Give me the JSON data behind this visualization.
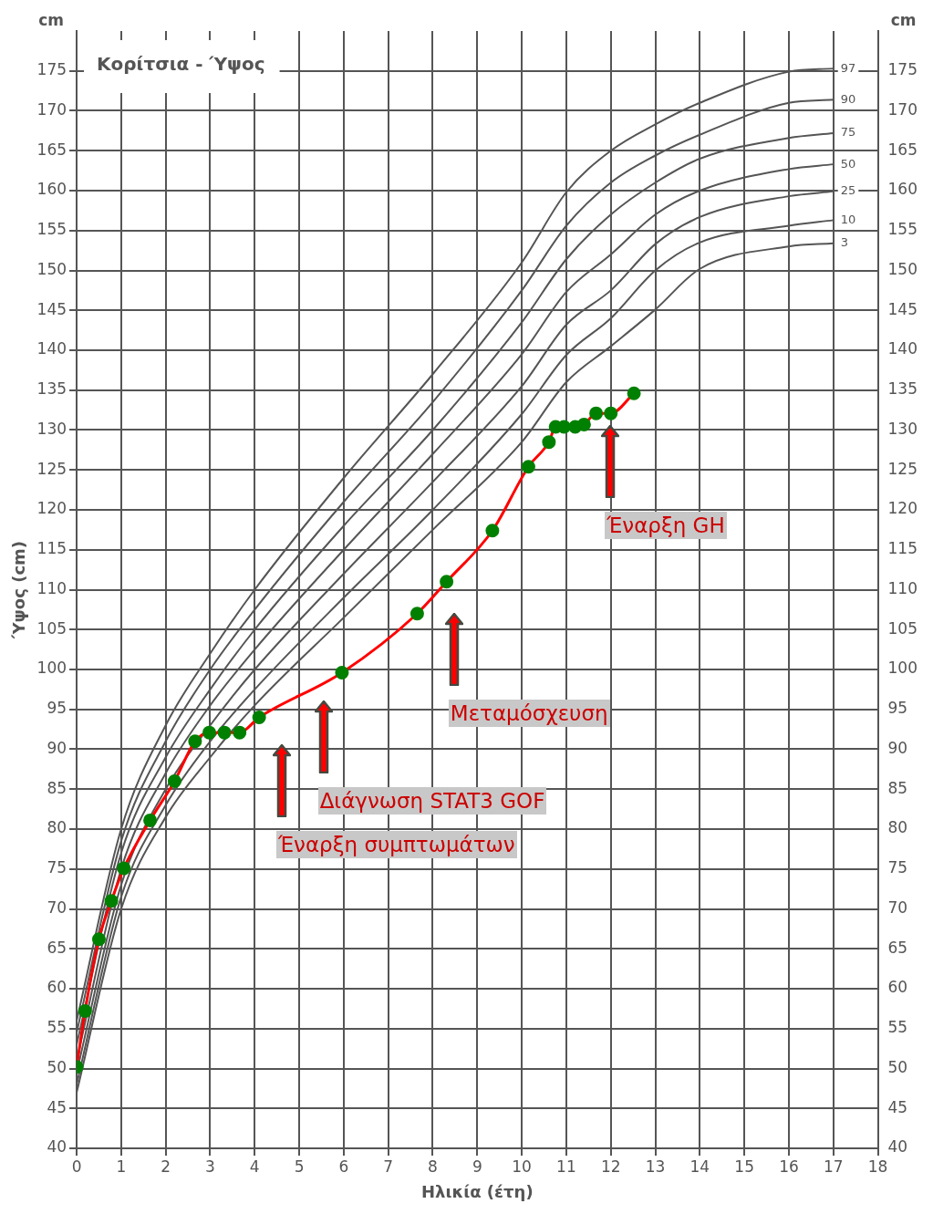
{
  "chart_data": {
    "type": "line",
    "title": "Κορίτσια - Ύψος",
    "xlabel": "Ηλικία (έτη)",
    "ylabel": "Ύψος (cm)",
    "y2label": "cm",
    "xlim": [
      0,
      18
    ],
    "xticks": [
      0,
      1,
      2,
      3,
      4,
      5,
      6,
      7,
      8,
      9,
      10,
      11,
      12,
      13,
      14,
      15,
      16,
      17,
      18
    ],
    "ylim": [
      40,
      180
    ],
    "yticks": [
      40,
      45,
      50,
      55,
      60,
      65,
      70,
      75,
      80,
      85,
      90,
      95,
      100,
      105,
      110,
      115,
      120,
      125,
      130,
      135,
      140,
      145,
      150,
      155,
      160,
      165,
      170,
      175
    ],
    "y2lim": [
      40,
      180
    ],
    "y2ticks": [
      40,
      45,
      50,
      55,
      60,
      65,
      70,
      75,
      80,
      85,
      90,
      95,
      100,
      105,
      110,
      115,
      120,
      125,
      130,
      135,
      140,
      145,
      150,
      155,
      160,
      165,
      170,
      175
    ],
    "grid": true,
    "legend": false,
    "line_style": "solid",
    "series": [
      {
        "name": "97",
        "color": "#555555",
        "marker": "none",
        "x": [
          0,
          1,
          2,
          3,
          4,
          6,
          8,
          10,
          11,
          12,
          13,
          14,
          16,
          17
        ],
        "values": [
          56,
          80,
          93,
          102,
          110,
          124,
          137,
          151,
          159.8,
          165,
          168.3,
          171,
          174.9,
          175.3
        ]
      },
      {
        "name": "90",
        "color": "#555555",
        "marker": "none",
        "x": [
          0,
          1,
          2,
          3,
          4,
          6,
          8,
          10,
          11,
          12,
          13,
          14,
          16,
          17
        ],
        "values": [
          54.5,
          78.5,
          91,
          100,
          107.5,
          121,
          133.5,
          147.5,
          155.6,
          161,
          164.4,
          167,
          171,
          171.4
        ]
      },
      {
        "name": "75",
        "color": "#555555",
        "marker": "none",
        "x": [
          0,
          1,
          2,
          3,
          4,
          6,
          8,
          10,
          11,
          12,
          13,
          14,
          16,
          17
        ],
        "values": [
          53,
          77,
          89,
          97.5,
          105,
          118,
          130,
          143.5,
          151.4,
          157,
          161,
          164,
          166.6,
          167.2
        ]
      },
      {
        "name": "50",
        "color": "#555555",
        "marker": "none",
        "x": [
          0,
          1,
          2,
          3,
          4,
          6,
          8,
          10,
          11,
          12,
          13,
          14,
          16,
          17
        ],
        "values": [
          51,
          75,
          87,
          95.5,
          102.5,
          115,
          127,
          139.5,
          147.3,
          152,
          157,
          160,
          162.7,
          163.3
        ]
      },
      {
        "name": "25",
        "color": "#555555",
        "marker": "none",
        "x": [
          0,
          1,
          2,
          3,
          4,
          6,
          8,
          10,
          11,
          12,
          13,
          14,
          16,
          17
        ],
        "values": [
          49.5,
          73,
          85,
          93,
          100,
          112,
          123.5,
          135.5,
          143.2,
          147.5,
          153.3,
          156.7,
          159.3,
          159.9
        ]
      },
      {
        "name": "10",
        "color": "#555555",
        "marker": "none",
        "x": [
          0,
          1,
          2,
          3,
          4,
          6,
          8,
          10,
          11,
          12,
          13,
          14,
          16,
          17
        ],
        "values": [
          48,
          71.5,
          83,
          91,
          97.5,
          109,
          120,
          132,
          139.4,
          144,
          150,
          153.5,
          155.6,
          156.3
        ]
      },
      {
        "name": "3",
        "color": "#555555",
        "marker": "none",
        "x": [
          0,
          1,
          2,
          3,
          4,
          6,
          8,
          10,
          11,
          12,
          13,
          14,
          16,
          17
        ],
        "values": [
          47,
          70,
          81.5,
          89,
          95.5,
          106.5,
          117.5,
          128.5,
          136,
          140.5,
          145.1,
          150.2,
          153,
          153.4
        ]
      },
      {
        "color": "#ff0000",
        "marker": "circle",
        "colors": [
          "#008000",
          "#008000",
          "#008000",
          "#008000",
          "#008000",
          "#008000",
          "#008000",
          "#008000",
          "#008000",
          "#008000",
          "#008000",
          "#008000",
          "#008000",
          "#008000",
          "#008000",
          "#008000",
          "#008000",
          "#008000",
          "#008000",
          "#008000",
          "#008000",
          "#008000",
          "#008000",
          "#008000",
          "#008000"
        ],
        "x": [
          0,
          0.19,
          0.5,
          0.78,
          1.06,
          1.65,
          2.2,
          2.66,
          2.98,
          3.32,
          3.66,
          4.1,
          5.96,
          7.65,
          8.31,
          9.34,
          10.15,
          10.61,
          10.76,
          10.95,
          11.2,
          11.4,
          11.67,
          12,
          12.52
        ],
        "values": [
          50.2,
          57.2,
          66.2,
          71,
          75.1,
          81.1,
          86,
          91,
          92.1,
          92.1,
          92.1,
          94,
          99.6,
          107,
          111,
          117.4,
          125.4,
          128.5,
          130.4,
          130.4,
          130.4,
          130.7,
          132.1,
          132.1,
          134.6
        ]
      }
    ],
    "annotations": [
      "cm",
      "Έναρξη συμπτωμάτων",
      "Διάγνωση STAT3 GOF",
      "Μεταμόσχευση",
      "Έναρξη GH"
    ]
  }
}
